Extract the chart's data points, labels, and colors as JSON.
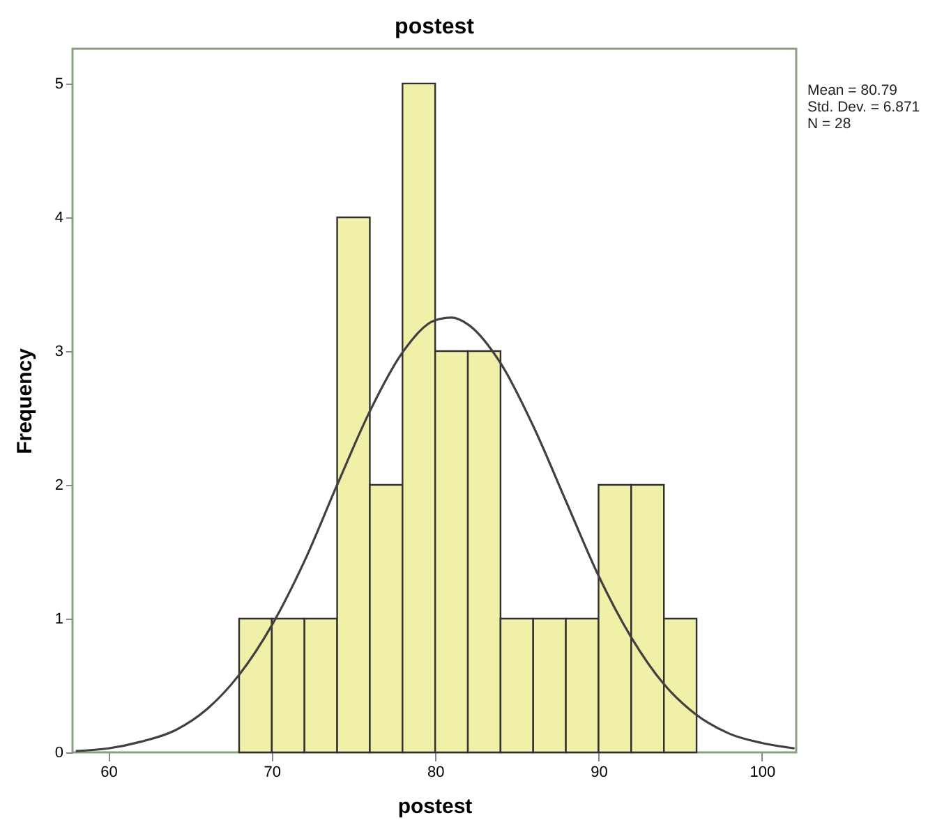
{
  "chart_data": {
    "type": "histogram",
    "title": "postest",
    "xlabel": "postest",
    "ylabel": "Frequency",
    "bins": [
      68,
      70,
      72,
      74,
      76,
      78,
      80,
      82,
      84,
      86,
      88,
      90,
      92,
      94,
      96
    ],
    "values": [
      1,
      1,
      1,
      4,
      2,
      5,
      3,
      3,
      1,
      1,
      1,
      2,
      2,
      1
    ],
    "color": "#f0f0a8",
    "series": [
      {
        "type": "line",
        "color": "#404040",
        "x": [
          58,
          60,
          62,
          64,
          66,
          68,
          70,
          72,
          74,
          76,
          78,
          80,
          81,
          82,
          84,
          86,
          88,
          90,
          92,
          94,
          96,
          98,
          100,
          102
        ],
        "values": [
          0.01,
          0.03,
          0.08,
          0.16,
          0.32,
          0.58,
          0.95,
          1.43,
          2.0,
          2.55,
          2.99,
          3.23,
          3.25,
          3.2,
          2.91,
          2.44,
          1.88,
          1.32,
          0.86,
          0.51,
          0.28,
          0.14,
          0.07,
          0.03
        ]
      }
    ],
    "xlim": [
      57.8,
      102.1
    ],
    "ylim": [
      0,
      5.26
    ],
    "xticks": [
      60,
      70,
      80,
      90,
      100
    ],
    "yticks": [
      0,
      1,
      2,
      3,
      4,
      5
    ],
    "grid": false,
    "annotations": [
      "Mean = 80.79",
      "Std. Dev. = 6.871",
      "N = 28"
    ]
  }
}
